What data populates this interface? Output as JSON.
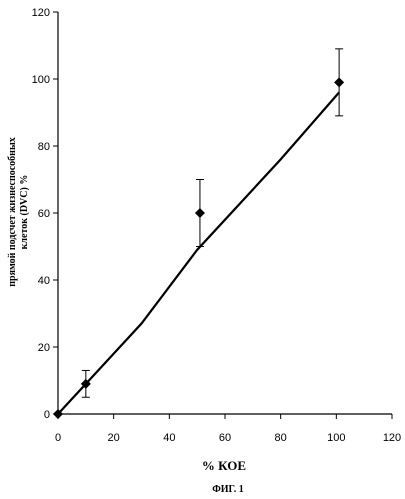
{
  "chart_data": {
    "type": "scatter",
    "title": "",
    "xlabel": "% КОЕ",
    "ylabel_line1": "прямой подсчет жизнеспособных",
    "ylabel_line2": "клеток (DVC) %",
    "caption": "ФИГ. 1",
    "xlim": [
      0,
      120
    ],
    "ylim": [
      0,
      120
    ],
    "x_ticks": [
      0,
      20,
      40,
      60,
      80,
      100,
      120
    ],
    "y_ticks": [
      0,
      20,
      40,
      60,
      80,
      100,
      120
    ],
    "x_tick_labels": [
      "0",
      "20",
      "40",
      "60",
      "80",
      "100",
      "120"
    ],
    "y_tick_labels": [
      "0",
      "20",
      "40",
      "60",
      "80",
      "100",
      "120"
    ],
    "grid": false,
    "points": [
      {
        "x": 0,
        "y": 0,
        "err": 0
      },
      {
        "x": 10,
        "y": 9,
        "err": 4
      },
      {
        "x": 51,
        "y": 60,
        "err": 10
      },
      {
        "x": 101,
        "y": 99,
        "err": 10
      }
    ],
    "fit_line": [
      [
        0,
        0
      ],
      [
        10,
        9
      ],
      [
        30,
        27
      ],
      [
        50,
        49
      ],
      [
        80,
        76
      ],
      [
        101,
        96
      ]
    ]
  }
}
